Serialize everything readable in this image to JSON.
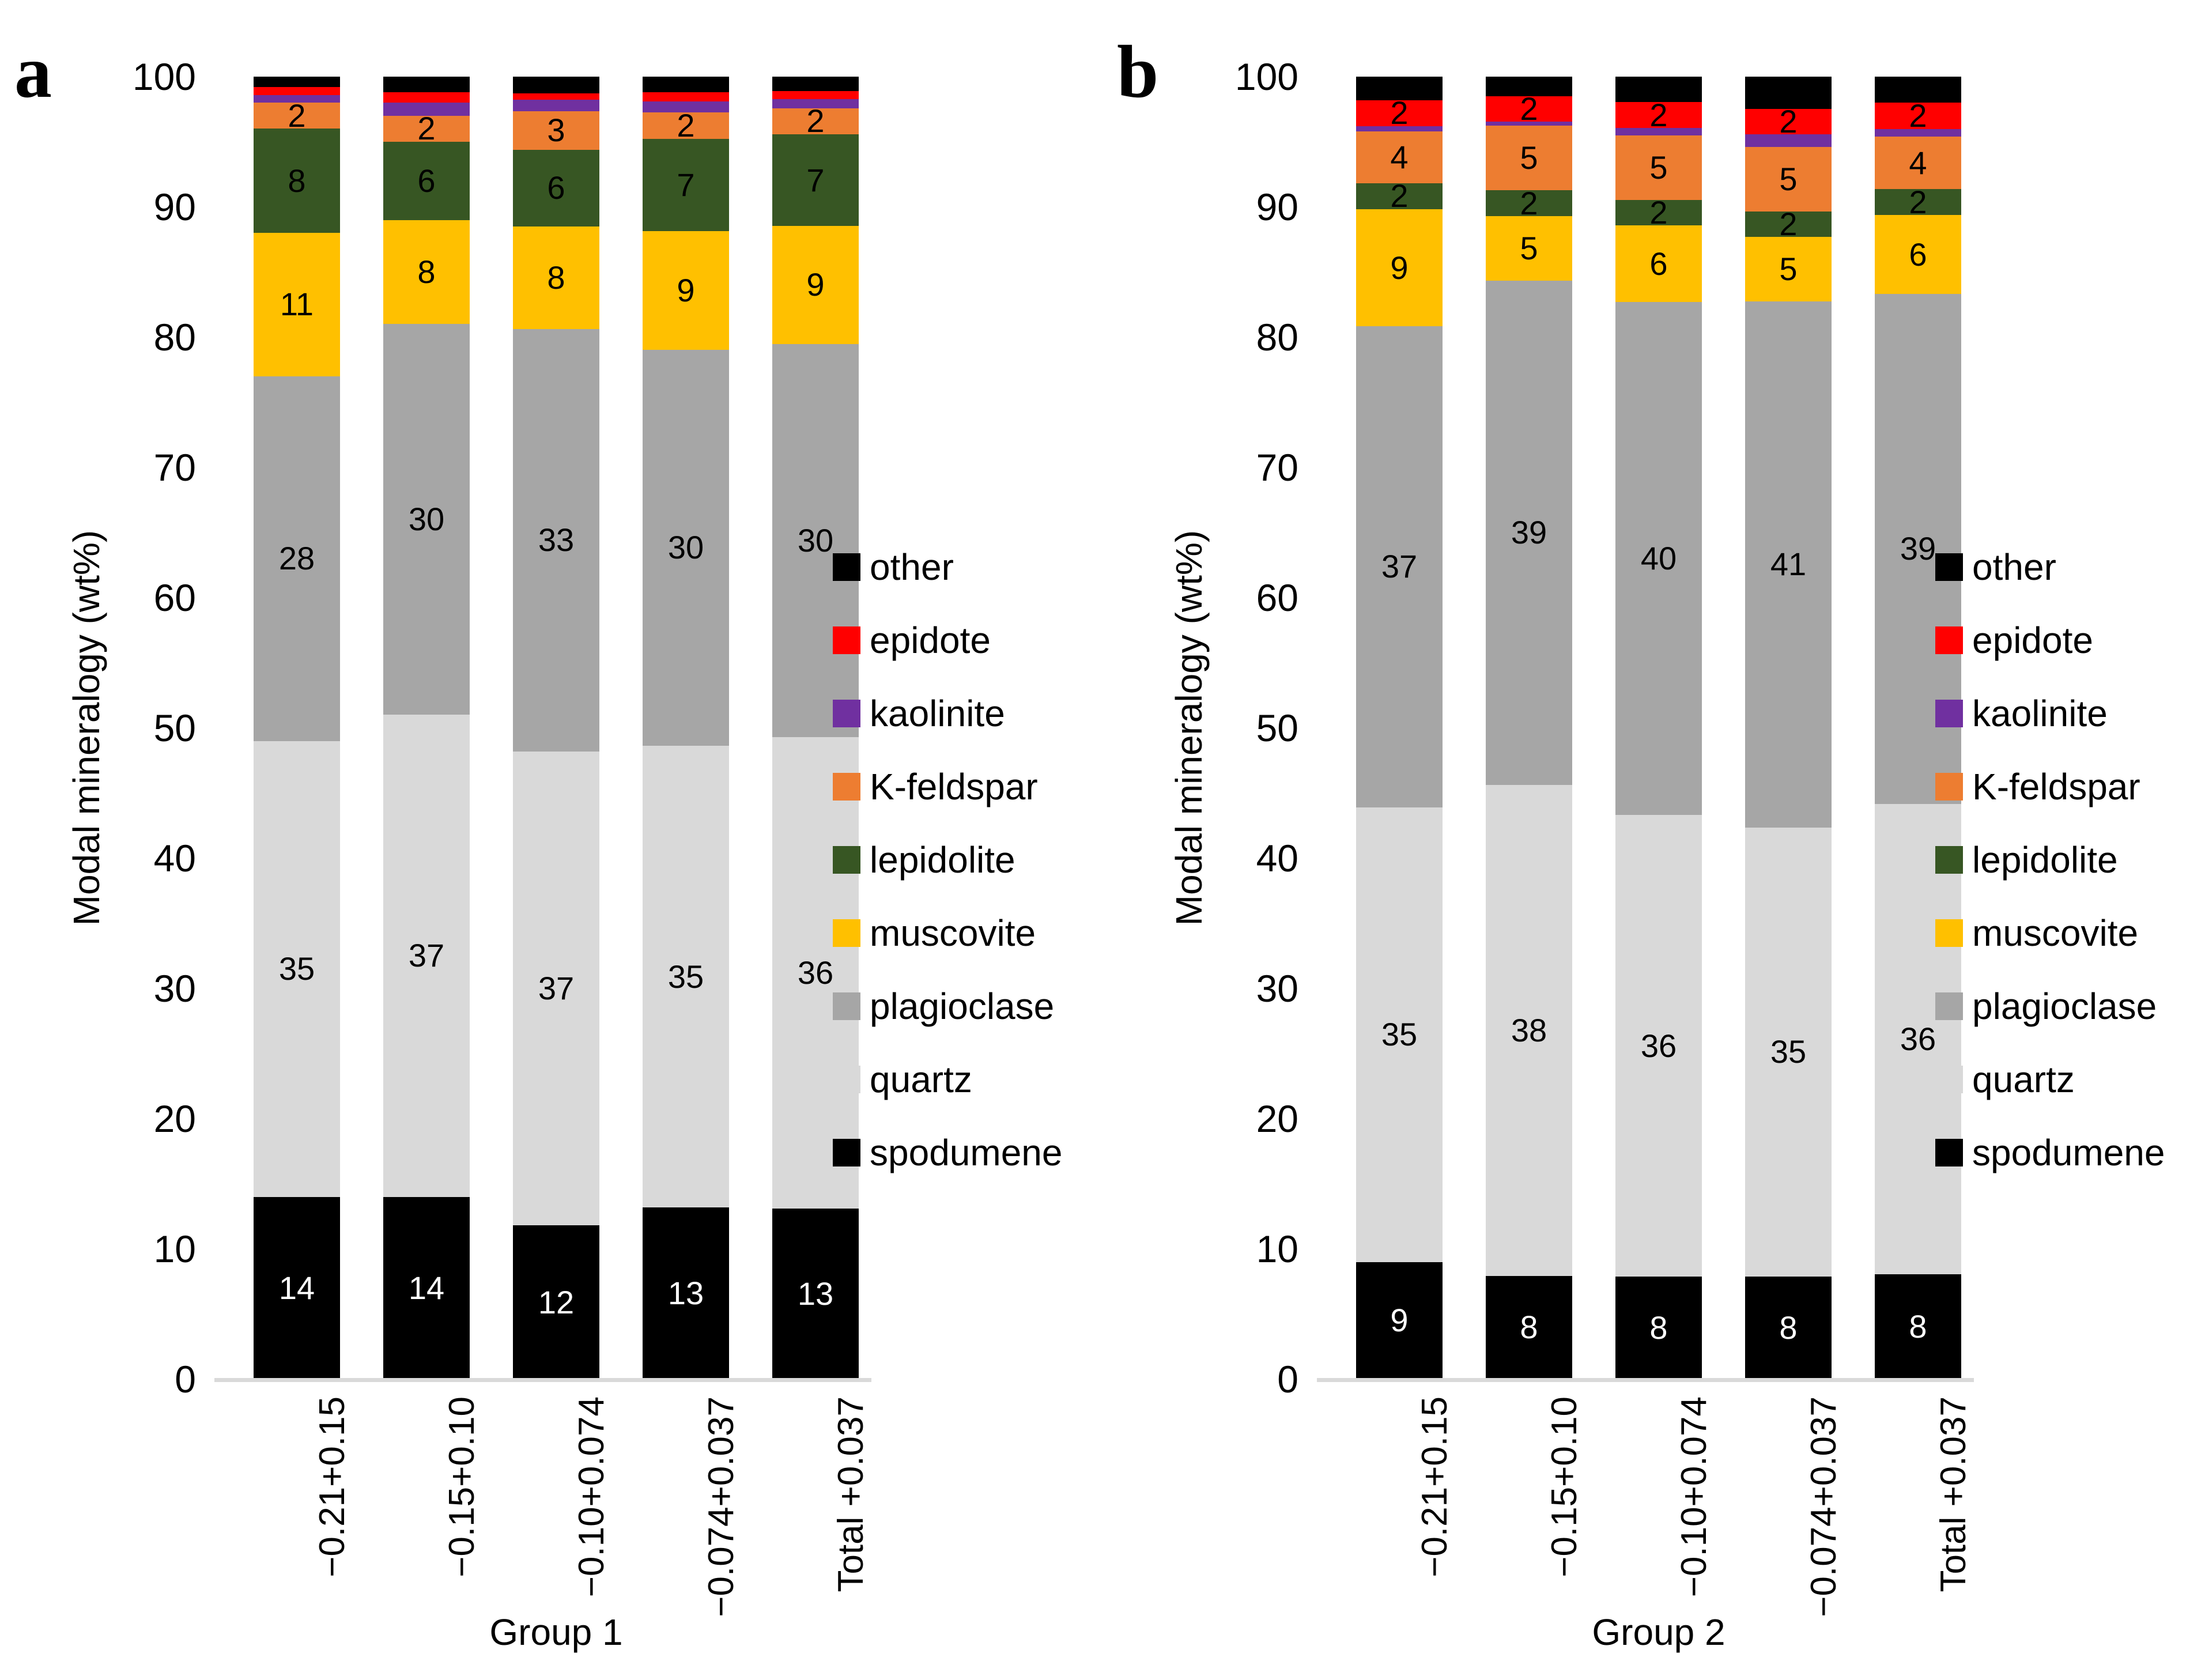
{
  "axis_color": "#D9D9D9",
  "chart_data": [
    {
      "type": "bar",
      "stacked": true,
      "panel_letter": "a",
      "xlabel": "Group 1",
      "ylabel": "Modal mineralogy (wt%)",
      "ylim": [
        0,
        100
      ],
      "yticks": [
        0,
        10,
        20,
        30,
        40,
        50,
        60,
        70,
        80,
        90,
        100
      ],
      "categories": [
        "−0.21+0.15",
        "−0.15+0.10",
        "−0.10+0.074",
        "−0.074+0.037",
        "Total +0.037"
      ],
      "series": [
        {
          "name": "spodumene",
          "color": "#000000",
          "label_color": "#FFFFFF",
          "values": [
            14,
            14,
            12,
            13,
            13
          ],
          "labels": [
            "14",
            "14",
            "12",
            "13",
            "13"
          ]
        },
        {
          "name": "quartz",
          "color": "#D9D9D9",
          "label_color": "#000000",
          "values": [
            35,
            37,
            37,
            35,
            36
          ],
          "labels": [
            "35",
            "37",
            "37",
            "35",
            "36"
          ]
        },
        {
          "name": "plagioclase",
          "color": "#A6A6A6",
          "label_color": "#000000",
          "values": [
            28,
            30,
            33,
            30,
            30
          ],
          "labels": [
            "28",
            "30",
            "33",
            "30",
            "30"
          ]
        },
        {
          "name": "muscovite",
          "color": "#FFC000",
          "label_color": "#000000",
          "values": [
            11,
            8,
            8,
            9,
            9
          ],
          "labels": [
            "11",
            "8",
            "8",
            "9",
            "9"
          ]
        },
        {
          "name": "lepidolite",
          "color": "#375623",
          "label_color": "#000000",
          "values": [
            8,
            6,
            6,
            7,
            7
          ],
          "labels": [
            "8",
            "6",
            "6",
            "7",
            "7"
          ]
        },
        {
          "name": "K-feldspar",
          "color": "#ED7D31",
          "label_color": "#000000",
          "values": [
            2,
            2,
            3,
            2,
            2
          ],
          "labels": [
            "2",
            "2",
            "3",
            "2",
            "2"
          ]
        },
        {
          "name": "kaolinite",
          "color": "#7030A0",
          "label_color": "#000000",
          "values": [
            0.6,
            1.0,
            0.9,
            0.8,
            0.7
          ],
          "labels": [
            "",
            "",
            "",
            "",
            ""
          ]
        },
        {
          "name": "epidote",
          "color": "#FF0000",
          "label_color": "#000000",
          "values": [
            0.6,
            0.8,
            0.5,
            0.7,
            0.6
          ],
          "labels": [
            "",
            "",
            "",
            "",
            ""
          ]
        },
        {
          "name": "other",
          "color": "#000000",
          "label_color": "#FFFFFF",
          "values": [
            0.8,
            1.2,
            1.3,
            1.2,
            1.1
          ],
          "labels": [
            "",
            "",
            "",
            "",
            ""
          ]
        }
      ],
      "legend": {
        "position": "right",
        "order_top_to_bottom": [
          "other",
          "epidote",
          "kaolinite",
          "K-feldspar",
          "lepidolite",
          "muscovite",
          "plagioclase",
          "quartz",
          "spodumene"
        ]
      }
    },
    {
      "type": "bar",
      "stacked": true,
      "panel_letter": "b",
      "xlabel": "Group 2",
      "ylabel": "Modal mineralogy (wt%)",
      "ylim": [
        0,
        100
      ],
      "yticks": [
        0,
        10,
        20,
        30,
        40,
        50,
        60,
        70,
        80,
        90,
        100
      ],
      "categories": [
        "−0.21+0.15",
        "−0.15+0.10",
        "−0.10+0.074",
        "−0.074+0.037",
        "Total +0.037"
      ],
      "series": [
        {
          "name": "spodumene",
          "color": "#000000",
          "label_color": "#FFFFFF",
          "values": [
            9,
            8,
            8,
            8,
            8
          ],
          "labels": [
            "9",
            "8",
            "8",
            "8",
            "8"
          ]
        },
        {
          "name": "quartz",
          "color": "#D9D9D9",
          "label_color": "#000000",
          "values": [
            35,
            38,
            36,
            35,
            36
          ],
          "labels": [
            "35",
            "38",
            "36",
            "35",
            "36"
          ]
        },
        {
          "name": "plagioclase",
          "color": "#A6A6A6",
          "label_color": "#000000",
          "values": [
            37,
            39,
            40,
            41,
            39
          ],
          "labels": [
            "37",
            "39",
            "40",
            "41",
            "39"
          ]
        },
        {
          "name": "muscovite",
          "color": "#FFC000",
          "label_color": "#000000",
          "values": [
            9,
            5,
            6,
            5,
            6
          ],
          "labels": [
            "9",
            "5",
            "6",
            "5",
            "6"
          ]
        },
        {
          "name": "lepidolite",
          "color": "#375623",
          "label_color": "#000000",
          "values": [
            2,
            2,
            2,
            2,
            2
          ],
          "labels": [
            "2",
            "2",
            "2",
            "2",
            "2"
          ]
        },
        {
          "name": "K-feldspar",
          "color": "#ED7D31",
          "label_color": "#000000",
          "values": [
            4,
            5,
            5,
            5,
            4
          ],
          "labels": [
            "4",
            "5",
            "5",
            "5",
            "4"
          ]
        },
        {
          "name": "kaolinite",
          "color": "#7030A0",
          "label_color": "#000000",
          "values": [
            0.4,
            0.3,
            0.6,
            1.0,
            0.6
          ],
          "labels": [
            "",
            "",
            "",
            "",
            ""
          ]
        },
        {
          "name": "epidote",
          "color": "#FF0000",
          "label_color": "#000000",
          "values": [
            2,
            2,
            2,
            2,
            2
          ],
          "labels": [
            "2",
            "2",
            "2",
            "2",
            "2"
          ]
        },
        {
          "name": "other",
          "color": "#000000",
          "label_color": "#FFFFFF",
          "values": [
            1.8,
            1.5,
            2.0,
            2.5,
            2.0
          ],
          "labels": [
            "",
            "",
            "",
            "",
            ""
          ]
        }
      ],
      "legend": {
        "position": "right",
        "order_top_to_bottom": [
          "other",
          "epidote",
          "kaolinite",
          "K-feldspar",
          "lepidolite",
          "muscovite",
          "plagioclase",
          "quartz",
          "spodumene"
        ]
      }
    }
  ]
}
